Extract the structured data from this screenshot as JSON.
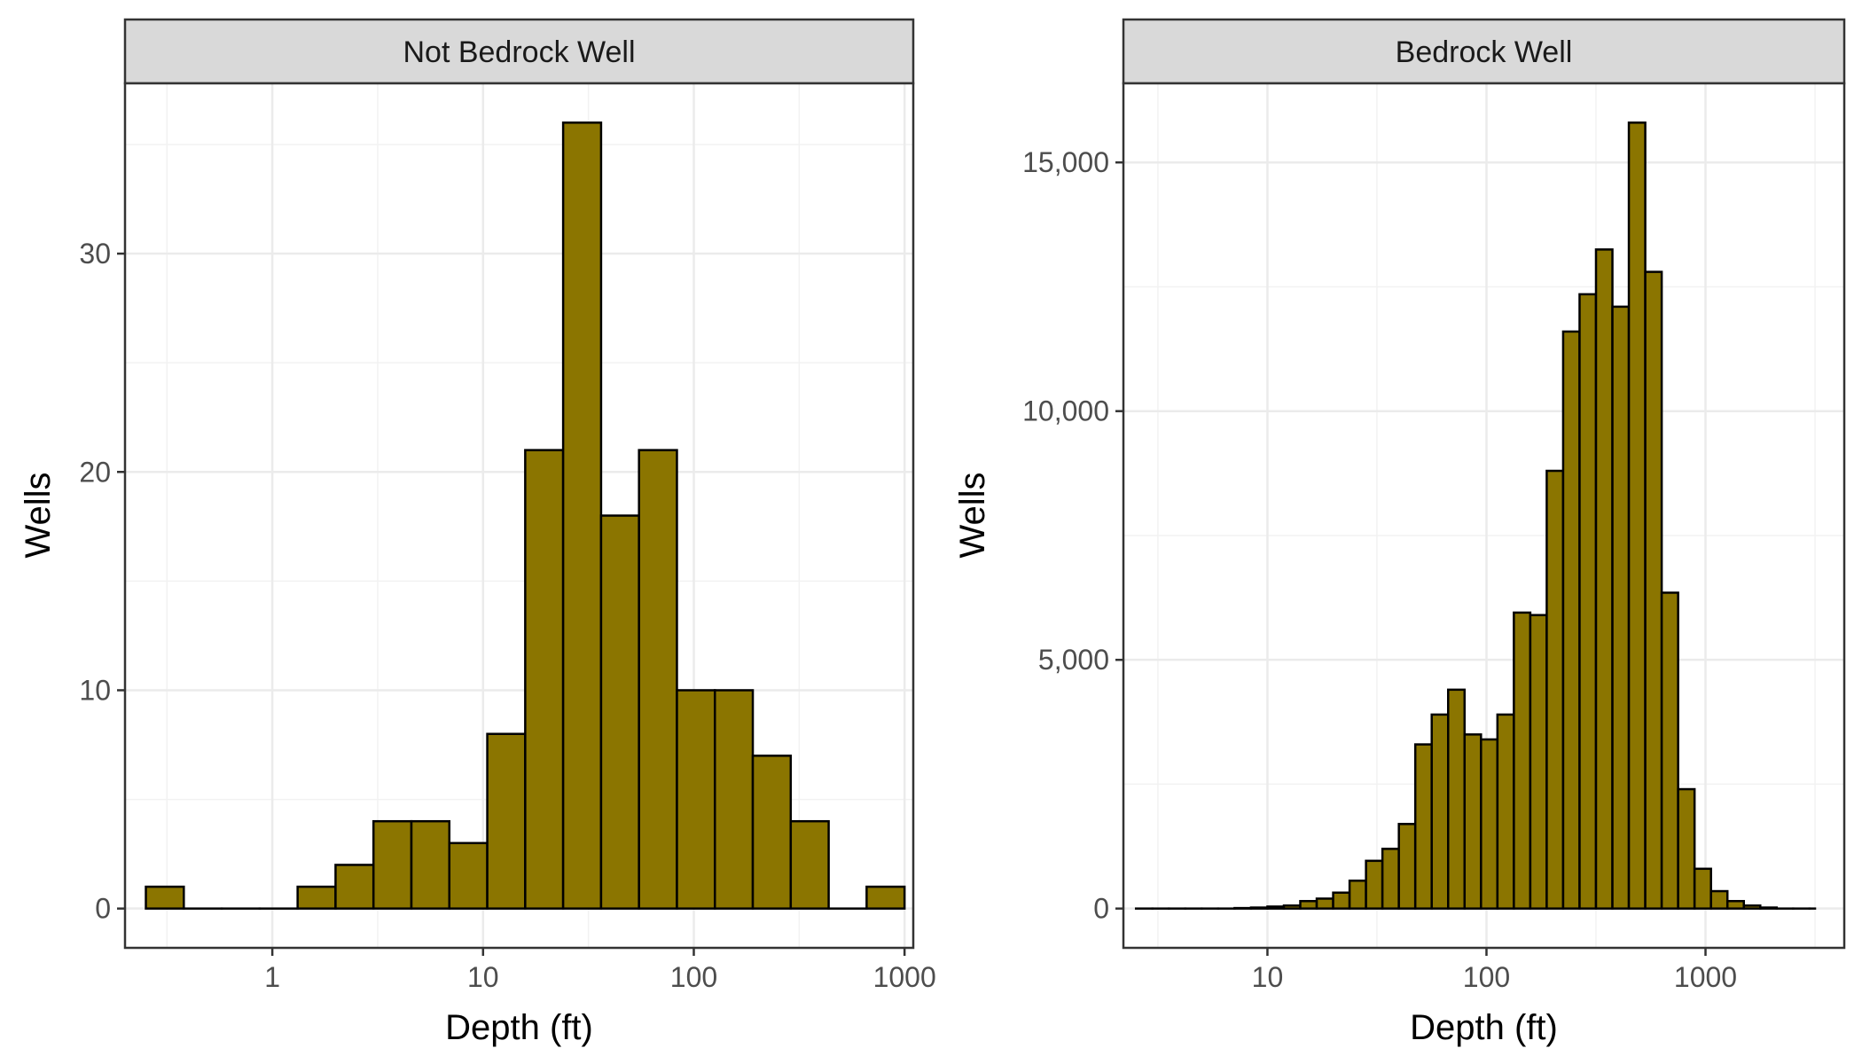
{
  "chart_data": [
    {
      "type": "bar",
      "title": "Not Bedrock Well",
      "xlabel": "Depth (ft)",
      "ylabel": "Wells",
      "x_scale": "log10",
      "x_ticks": [
        1,
        10,
        100,
        1000
      ],
      "x_tick_labels": [
        "1",
        "10",
        "100",
        "1000"
      ],
      "xlim": [
        0.2,
        1100
      ],
      "y_ticks": [
        0,
        10,
        20,
        30
      ],
      "y_tick_labels": [
        "0",
        "10",
        "20",
        "30"
      ],
      "ylim": [
        -1.8,
        37.8
      ],
      "grid": true,
      "bar_color": "#8B7500",
      "bar_edge_color": "#000000",
      "bins_log10": [
        -0.6,
        -0.42,
        -0.24,
        -0.06,
        0.12,
        0.3,
        0.48,
        0.66,
        0.84,
        1.02,
        1.2,
        1.38,
        1.56,
        1.74,
        1.92,
        2.1,
        2.28,
        2.46,
        2.64,
        2.82,
        3.0
      ],
      "values": [
        1,
        0,
        0,
        0,
        1,
        2,
        4,
        4,
        3,
        8,
        21,
        36,
        18,
        21,
        10,
        10,
        7,
        4,
        0,
        1
      ]
    },
    {
      "type": "bar",
      "title": "Bedrock Well",
      "xlabel": "Depth (ft)",
      "ylabel": "Wells",
      "x_scale": "log10",
      "x_ticks": [
        10,
        100,
        1000
      ],
      "x_tick_labels": [
        "10",
        "100",
        "1000"
      ],
      "xlim": [
        2.2,
        4300
      ],
      "y_ticks": [
        0,
        5000,
        10000,
        15000
      ],
      "y_tick_labels": [
        "0",
        "5,000",
        "10,000",
        "15,000"
      ],
      "ylim": [
        -790,
        16590
      ],
      "grid": true,
      "bar_color": "#8B7500",
      "bar_edge_color": "#000000",
      "bins_log10": [
        0.4,
        0.475,
        0.55,
        0.625,
        0.7,
        0.775,
        0.85,
        0.925,
        1.0,
        1.075,
        1.15,
        1.225,
        1.3,
        1.375,
        1.45,
        1.525,
        1.6,
        1.675,
        1.75,
        1.825,
        1.9,
        1.975,
        2.05,
        2.125,
        2.2,
        2.275,
        2.35,
        2.425,
        2.5,
        2.575,
        2.65,
        2.725,
        2.8,
        2.875,
        2.95,
        3.025,
        3.1,
        3.175,
        3.25,
        3.325,
        3.4,
        3.475,
        3.5
      ],
      "values": [
        0,
        0,
        0,
        0,
        0,
        0,
        10,
        20,
        40,
        60,
        150,
        200,
        320,
        560,
        960,
        1200,
        1700,
        3300,
        3900,
        4400,
        3500,
        3400,
        3900,
        5950,
        5900,
        8800,
        11600,
        12350,
        13250,
        12100,
        15800,
        12800,
        6350,
        2400,
        800,
        350,
        150,
        60,
        20,
        0,
        0,
        0
      ]
    }
  ]
}
